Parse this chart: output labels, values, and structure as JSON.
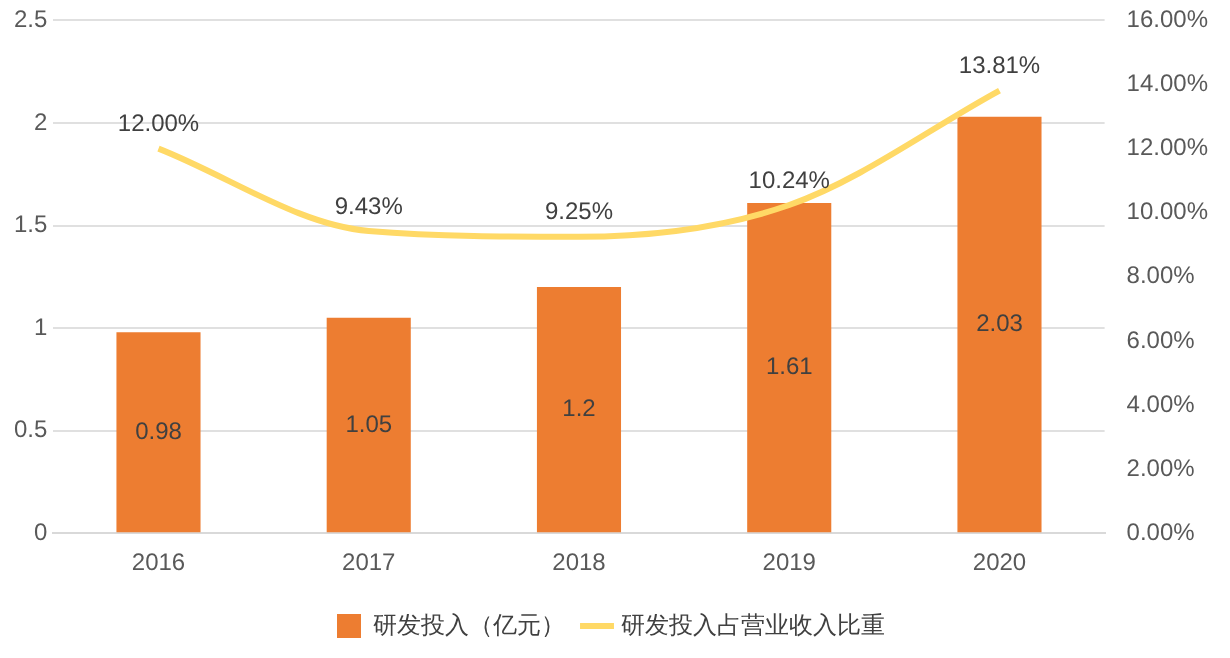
{
  "chart_data": {
    "type": "bar",
    "categories": [
      "2016",
      "2017",
      "2018",
      "2019",
      "2020"
    ],
    "series": [
      {
        "name": "研发投入（亿元）",
        "color": "#ed7d31",
        "values": [
          0.98,
          1.05,
          1.2,
          1.61,
          2.03
        ],
        "value_labels": [
          "0.98",
          "1.05",
          "1.2",
          "1.61",
          "2.03"
        ]
      },
      {
        "name": "研发投入占营业收入比重",
        "type": "line",
        "axis": "y2",
        "color": "#ffd966",
        "values": [
          12.0,
          9.43,
          9.25,
          10.24,
          13.81
        ],
        "value_labels": [
          "12.00%",
          "9.43%",
          "9.25%",
          "10.24%",
          "13.81%"
        ]
      }
    ],
    "ylim": [
      0,
      2.5
    ],
    "yticks": [
      0,
      0.5,
      1,
      1.5,
      2,
      2.5
    ],
    "y2lim": [
      0,
      16
    ],
    "y2ticks": [
      {
        "value": 0,
        "label": "0.00%"
      },
      {
        "value": 2,
        "label": "2.00%"
      },
      {
        "value": 4,
        "label": "4.00%"
      },
      {
        "value": 6,
        "label": "6.00%"
      },
      {
        "value": 8,
        "label": "8.00%"
      },
      {
        "value": 10,
        "label": "10.00%"
      },
      {
        "value": 12,
        "label": "12.00%"
      },
      {
        "value": 14,
        "label": "14.00%"
      },
      {
        "value": 16,
        "label": "16.00%"
      }
    ],
    "grid": "y",
    "legend": "bottom",
    "marker": "none",
    "line_style": "solid"
  }
}
